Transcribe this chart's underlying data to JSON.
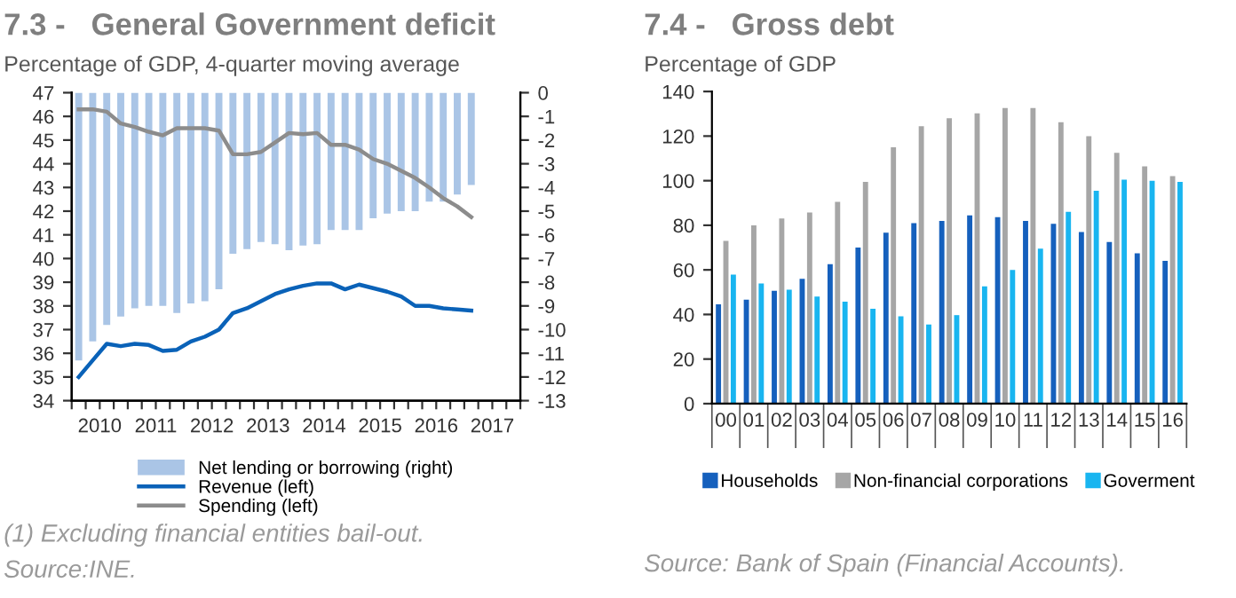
{
  "chart_data": [
    {
      "type": "bar",
      "title": "7.3 -   General Government deficit",
      "subtitle": "Percentage of GDP, 4-quarter moving average",
      "x": [
        2010.125,
        2010.375,
        2010.625,
        2010.875,
        2011.125,
        2011.375,
        2011.625,
        2011.875,
        2012.125,
        2012.375,
        2012.625,
        2012.875,
        2013.125,
        2013.375,
        2013.625,
        2013.875,
        2014.125,
        2014.375,
        2014.625,
        2014.875,
        2015.125,
        2015.375,
        2015.625,
        2015.875,
        2016.125,
        2016.375,
        2016.625,
        2016.875,
        2017.125
      ],
      "series": [
        {
          "name": "Net lending or borrowing (right)",
          "type": "bar",
          "axis": "y2",
          "color": "#aac5e6",
          "values": [
            -11.3,
            -10.5,
            -9.8,
            -9.45,
            -9.1,
            -9.0,
            -9.0,
            -9.3,
            -8.9,
            -8.8,
            -8.3,
            -6.8,
            -6.6,
            -6.3,
            -6.4,
            -6.65,
            -6.45,
            -6.4,
            -5.8,
            -5.8,
            -5.8,
            -5.3,
            -5.1,
            -5.0,
            -5.0,
            -4.6,
            -4.6,
            -4.3,
            -3.9
          ]
        },
        {
          "name": "Revenue (left)",
          "type": "line",
          "color": "#0a62b8",
          "values": [
            35.0,
            35.7,
            36.4,
            36.3,
            36.4,
            36.35,
            36.1,
            36.15,
            36.5,
            36.7,
            37.0,
            37.7,
            37.9,
            38.2,
            38.5,
            38.7,
            38.85,
            38.95,
            38.95,
            38.7,
            38.9,
            38.75,
            38.6,
            38.4,
            38.0,
            38.0,
            37.9,
            37.85,
            37.8
          ]
        },
        {
          "name": "Spending (left)",
          "type": "line",
          "color": "#8c8c8c",
          "values": [
            46.3,
            46.3,
            46.2,
            45.7,
            45.55,
            45.35,
            45.2,
            45.5,
            45.5,
            45.5,
            45.4,
            44.4,
            44.4,
            44.5,
            44.9,
            45.3,
            45.25,
            45.3,
            44.8,
            44.8,
            44.6,
            44.2,
            44.0,
            43.7,
            43.4,
            43.0,
            42.55,
            42.2,
            41.75
          ]
        }
      ],
      "xlim": [
        2010,
        2018
      ],
      "xticks": [
        {
          "value": 2010,
          "label": null
        },
        {
          "value": 2010.25,
          "label": null
        },
        {
          "value": 2010.5,
          "label": "2010"
        },
        {
          "value": 2010.75,
          "label": null
        },
        {
          "value": 2011,
          "label": null
        },
        {
          "value": 2011.25,
          "label": null
        },
        {
          "value": 2011.5,
          "label": "2011"
        },
        {
          "value": 2011.75,
          "label": null
        },
        {
          "value": 2012,
          "label": null
        },
        {
          "value": 2012.25,
          "label": null
        },
        {
          "value": 2012.5,
          "label": "2012"
        },
        {
          "value": 2012.75,
          "label": null
        },
        {
          "value": 2013,
          "label": null
        },
        {
          "value": 2013.25,
          "label": null
        },
        {
          "value": 2013.5,
          "label": "2013"
        },
        {
          "value": 2013.75,
          "label": null
        },
        {
          "value": 2014,
          "label": null
        },
        {
          "value": 2014.25,
          "label": null
        },
        {
          "value": 2014.5,
          "label": "2014"
        },
        {
          "value": 2014.75,
          "label": null
        },
        {
          "value": 2015,
          "label": null
        },
        {
          "value": 2015.25,
          "label": null
        },
        {
          "value": 2015.5,
          "label": "2015"
        },
        {
          "value": 2015.75,
          "label": null
        },
        {
          "value": 2016,
          "label": null
        },
        {
          "value": 2016.25,
          "label": null
        },
        {
          "value": 2016.5,
          "label": "2016"
        },
        {
          "value": 2016.75,
          "label": null
        },
        {
          "value": 2017,
          "label": null
        },
        {
          "value": 2017.25,
          "label": null
        },
        {
          "value": 2017.5,
          "label": "2017"
        },
        {
          "value": 2017.75,
          "label": null
        },
        {
          "value": 2018,
          "label": null
        }
      ],
      "ylim": [
        34,
        47
      ],
      "yticks": [
        34,
        35,
        36,
        37,
        38,
        39,
        40,
        41,
        42,
        43,
        44,
        45,
        46,
        47
      ],
      "y2lim": [
        -13,
        0
      ],
      "y2ticks": [
        -13,
        -12,
        -11,
        -10,
        -9,
        -8,
        -7,
        -6,
        -5,
        -4,
        -3,
        -2,
        -1,
        0
      ],
      "grid": false,
      "legend": "bottom",
      "annotations": [
        "(1) Excluding financial entities bail-out.",
        "Source:INE."
      ]
    },
    {
      "type": "bar",
      "title": "7.4 -   Gross debt",
      "subtitle": "Percentage of GDP",
      "categories": [
        "00",
        "01",
        "02",
        "03",
        "04",
        "05",
        "06",
        "07",
        "08",
        "09",
        "10",
        "11",
        "12",
        "13",
        "14",
        "15",
        "16"
      ],
      "series": [
        {
          "name": "Households",
          "color": "#1560bd",
          "values": [
            44.5,
            46.6,
            50.6,
            56,
            62.6,
            70,
            76.7,
            81,
            82,
            84.4,
            83.6,
            82,
            80.7,
            77,
            72.5,
            67.4,
            64
          ]
        },
        {
          "name": "Non-financial corporations",
          "color": "#a6a6a6",
          "values": [
            73,
            80,
            83,
            85.7,
            90.5,
            99.5,
            115,
            124.4,
            128,
            130.2,
            132.6,
            132.6,
            126.2,
            120,
            112.5,
            106.4,
            102
          ]
        },
        {
          "name": "Goverment",
          "color": "#19b5f0",
          "values": [
            57.9,
            53.9,
            51.1,
            48,
            45.7,
            42.6,
            39.2,
            35.5,
            39.7,
            52.6,
            60,
            69.5,
            86,
            95.5,
            100.5,
            100,
            99.5
          ]
        }
      ],
      "ylim": [
        0,
        140
      ],
      "yticks": [
        0,
        20,
        40,
        60,
        80,
        100,
        120,
        140
      ],
      "grid": false,
      "legend": "bottom",
      "annotations": [
        "Source: Bank of Spain (Financial Accounts)."
      ]
    }
  ]
}
